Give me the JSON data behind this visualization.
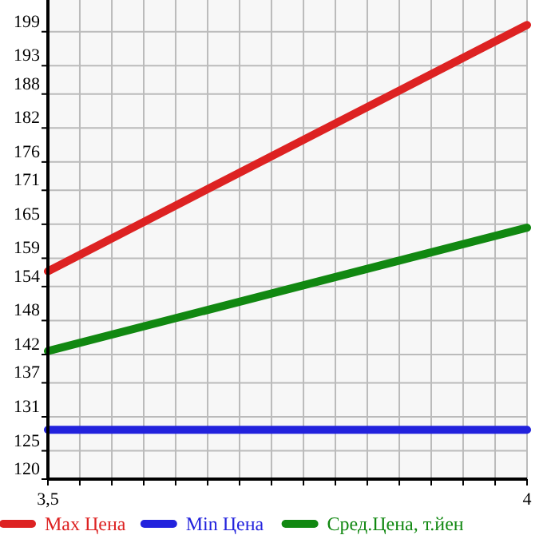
{
  "chart_data": {
    "type": "line",
    "x": [
      3.5,
      4
    ],
    "series": [
      {
        "name": "Max Цена",
        "color": "#dd2222",
        "values": [
          156.7,
          200.2
        ]
      },
      {
        "name": "Min Цена",
        "color": "#2222dd",
        "values": [
          128.7,
          128.7
        ]
      },
      {
        "name": "Сред.Цена, т.йен",
        "color": "#118811",
        "values": [
          142.6,
          164.4
        ]
      }
    ],
    "xlim": [
      3.5,
      4
    ],
    "xticks": [
      {
        "value": 3.5,
        "label": "3,5"
      },
      {
        "value": 3.5333,
        "label": null
      },
      {
        "value": 3.5667,
        "label": null
      },
      {
        "value": 3.6,
        "label": null
      },
      {
        "value": 3.6333,
        "label": null
      },
      {
        "value": 3.6667,
        "label": null
      },
      {
        "value": 3.7,
        "label": null
      },
      {
        "value": 3.7333,
        "label": null
      },
      {
        "value": 3.7667,
        "label": null
      },
      {
        "value": 3.8,
        "label": null
      },
      {
        "value": 3.8333,
        "label": null
      },
      {
        "value": 3.8667,
        "label": null
      },
      {
        "value": 3.9,
        "label": null
      },
      {
        "value": 3.9333,
        "label": null
      },
      {
        "value": 3.9667,
        "label": null
      },
      4
    ],
    "ylim": [
      120,
      204.6
    ],
    "yticks": [
      120,
      125,
      131,
      137,
      142,
      148,
      154,
      159,
      165,
      171,
      176,
      182,
      188,
      193,
      199
    ],
    "grid": true,
    "legend": "bottom",
    "marker": "none",
    "line_style": "solid"
  }
}
